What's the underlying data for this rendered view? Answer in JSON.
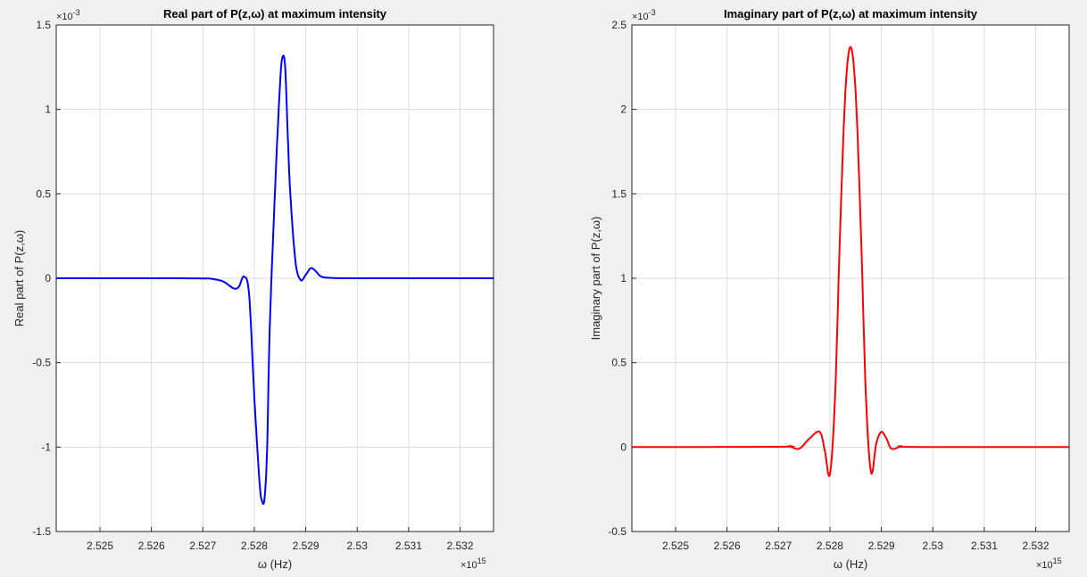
{
  "chart_data": [
    {
      "type": "line",
      "title": "Real part of P(z,ω) at maximum intensity",
      "xlabel": "ω (Hz)",
      "ylabel": "Real part of P(z,ω)",
      "x_multiplier_label": "×10",
      "x_multiplier_exp": "15",
      "y_multiplier_label": "×10",
      "y_multiplier_exp": "-3",
      "xlim": [
        2.52415,
        2.53265
      ],
      "ylim": [
        -1.5,
        1.5
      ],
      "x_ticks": [
        "2.525",
        "2.526",
        "2.527",
        "2.528",
        "2.529",
        "2.53",
        "2.531",
        "2.532"
      ],
      "y_ticks": [
        "-1.5",
        "-1",
        "-0.5",
        "0",
        "0.5",
        "1",
        "1.5"
      ],
      "grid": true,
      "color": "#0000ff",
      "series": [
        {
          "x": [
            2.52415,
            2.526,
            2.527,
            2.5272,
            2.5274,
            2.5276,
            2.5277,
            2.5278,
            2.5279,
            2.528,
            2.5281,
            2.52815,
            2.5282,
            2.52825,
            2.5283,
            2.5284,
            2.5285,
            2.52855,
            2.5286,
            2.52865,
            2.5287,
            2.5288,
            2.5289,
            2.529,
            2.5291,
            2.5292,
            2.5293,
            2.5295,
            2.53,
            2.53265
          ],
          "y": [
            0,
            0,
            -0.001,
            -0.005,
            -0.02,
            -0.06,
            -0.05,
            0.01,
            -0.1,
            -0.7,
            -1.2,
            -1.32,
            -1.3,
            -1.0,
            -0.3,
            0.5,
            1.15,
            1.31,
            1.25,
            0.85,
            0.5,
            0.1,
            -0.01,
            0.02,
            0.06,
            0.04,
            0.01,
            0.002,
            0,
            0
          ]
        }
      ]
    },
    {
      "type": "line",
      "title": "Imaginary part of P(z,ω) at maximum intensity",
      "xlabel": "ω (Hz)",
      "ylabel": "Imaginary part of P(z,ω)",
      "x_multiplier_label": "×10",
      "x_multiplier_exp": "15",
      "y_multiplier_label": "×10",
      "y_multiplier_exp": "-3",
      "xlim": [
        2.52415,
        2.53265
      ],
      "ylim": [
        -0.5,
        2.5
      ],
      "x_ticks": [
        "2.525",
        "2.526",
        "2.527",
        "2.528",
        "2.529",
        "2.53",
        "2.531",
        "2.532"
      ],
      "y_ticks": [
        "-0.5",
        "0",
        "0.5",
        "1",
        "1.5",
        "2",
        "2.5"
      ],
      "grid": true,
      "color": "#ff0000",
      "series": [
        {
          "x": [
            2.52415,
            2.527,
            2.5272,
            2.5274,
            2.5276,
            2.5278,
            2.5279,
            2.528,
            2.5281,
            2.5282,
            2.5283,
            2.5284,
            2.5285,
            2.5286,
            2.5287,
            2.5288,
            2.5289,
            2.529,
            2.5291,
            2.5292,
            2.5294,
            2.5296,
            2.53265
          ],
          "y": [
            0,
            0.002,
            0.005,
            -0.01,
            0.05,
            0.09,
            -0.02,
            -0.16,
            0.3,
            1.3,
            2.1,
            2.37,
            2.1,
            1.3,
            0.3,
            -0.15,
            0.02,
            0.09,
            0.05,
            -0.01,
            0.005,
            0.001,
            0
          ]
        }
      ]
    }
  ]
}
